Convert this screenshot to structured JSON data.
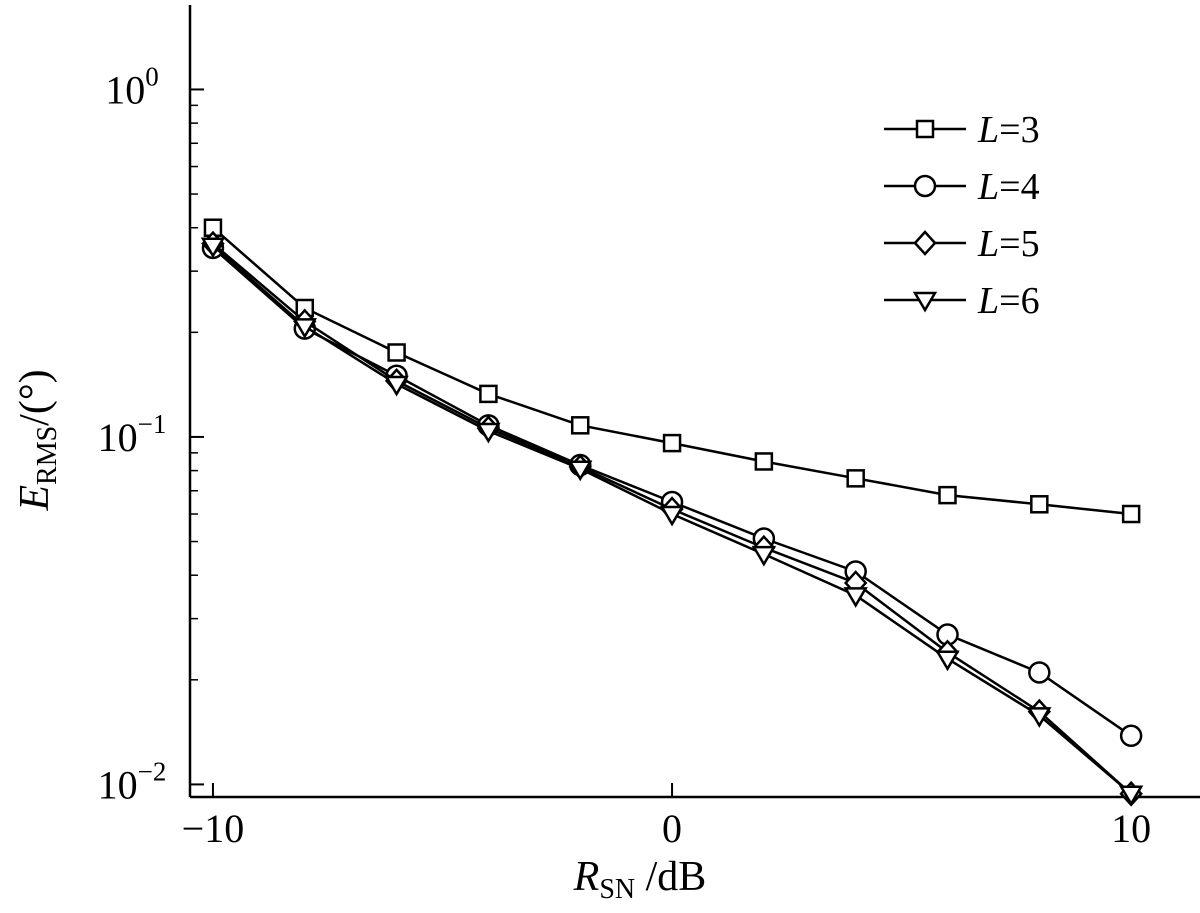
{
  "chart_data": {
    "type": "line",
    "title": "",
    "xlabel": {
      "main": "R",
      "sub": "SN",
      "unit": " /dB"
    },
    "ylabel": {
      "main": "E",
      "sub": "RMS",
      "unit": "/(°)"
    },
    "xlim": [
      -10.5,
      11.5
    ],
    "ylim": [
      0.0092,
      1.75
    ],
    "yscale": "log",
    "grid": false,
    "legend_position": "top-right",
    "x_ticks": [
      {
        "value": -10,
        "label": "−10"
      },
      {
        "value": 0,
        "label": "0"
      },
      {
        "value": 10,
        "label": "10"
      }
    ],
    "y_ticks": [
      {
        "value": 1,
        "base": "10",
        "exp": "0"
      },
      {
        "value": 0.1,
        "base": "10",
        "exp": "−1"
      },
      {
        "value": 0.01,
        "base": "10",
        "exp": "−2"
      }
    ],
    "x": [
      -10,
      -8,
      -6,
      -4,
      -2,
      0,
      2,
      4,
      6,
      8,
      10
    ],
    "series": [
      {
        "name": "L=3",
        "legend_var": "L",
        "legend_val": "=3",
        "marker": "square",
        "values": [
          0.4,
          0.235,
          0.175,
          0.133,
          0.108,
          0.096,
          0.085,
          0.076,
          0.068,
          0.064,
          0.06
        ]
      },
      {
        "name": "L=4",
        "legend_var": "L",
        "legend_val": "=4",
        "marker": "circle",
        "values": [
          0.35,
          0.205,
          0.15,
          0.108,
          0.083,
          0.065,
          0.051,
          0.041,
          0.027,
          0.021,
          0.0138
        ]
      },
      {
        "name": "L=5",
        "legend_var": "L",
        "legend_val": "=5",
        "marker": "diamond",
        "values": [
          0.36,
          0.215,
          0.145,
          0.106,
          0.082,
          0.062,
          0.048,
          0.038,
          0.024,
          0.0162,
          0.0094
        ]
      },
      {
        "name": "L=6",
        "legend_var": "L",
        "legend_val": "=6",
        "marker": "triangle-down",
        "values": [
          0.355,
          0.208,
          0.142,
          0.104,
          0.081,
          0.06,
          0.046,
          0.035,
          0.023,
          0.0158,
          0.0094
        ]
      }
    ]
  }
}
